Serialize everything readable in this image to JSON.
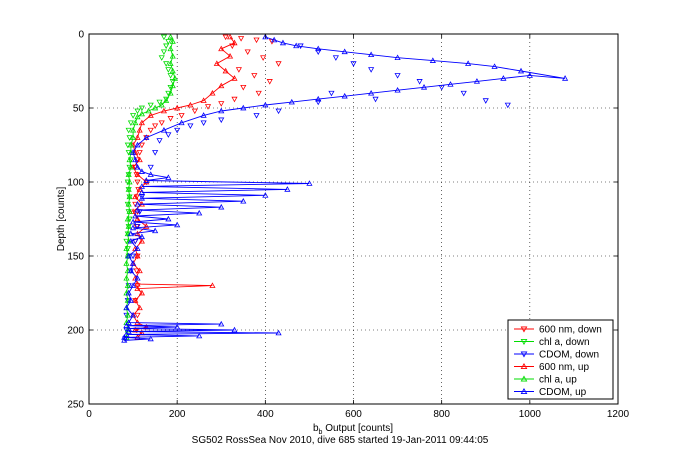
{
  "chart_data": {
    "type": "scatter",
    "xlabel": "b",
    "xlabel_sub": "b",
    "xlabel_rest": " Output [counts]",
    "ylabel": "Depth [counts]",
    "caption": "SG502 RossSea Nov 2010, dive 685 started 19-Jan-2011 09:44:05",
    "xlim": [
      0,
      1200
    ],
    "ylim": [
      0,
      250
    ],
    "y_reversed": true,
    "grid": true,
    "legend_position": "bottom-right",
    "xticks": [
      "0",
      "200",
      "400",
      "600",
      "800",
      "1000",
      "1200"
    ],
    "yticks": [
      "0",
      "50",
      "100",
      "150",
      "200",
      "250"
    ],
    "series": [
      {
        "name": "600 nm, down",
        "color": "#ff0000",
        "marker": "triangle-down",
        "connect": false,
        "points": [
          [
            310,
            2
          ],
          [
            345,
            3
          ],
          [
            380,
            4
          ],
          [
            415,
            5
          ],
          [
            325,
            8
          ],
          [
            360,
            12
          ],
          [
            395,
            16
          ],
          [
            430,
            20
          ],
          [
            340,
            24
          ],
          [
            375,
            28
          ],
          [
            410,
            32
          ],
          [
            350,
            36
          ],
          [
            385,
            40
          ],
          [
            330,
            44
          ],
          [
            300,
            47
          ],
          [
            270,
            49
          ],
          [
            240,
            52
          ],
          [
            210,
            55
          ],
          [
            185,
            57
          ],
          [
            165,
            60
          ],
          [
            150,
            62
          ],
          [
            140,
            65
          ],
          [
            130,
            70
          ],
          [
            120,
            75
          ],
          [
            115,
            80
          ],
          [
            110,
            85
          ],
          [
            105,
            90
          ],
          [
            108,
            95
          ],
          [
            110,
            100
          ],
          [
            112,
            105
          ],
          [
            108,
            110
          ],
          [
            105,
            115
          ],
          [
            110,
            120
          ],
          [
            108,
            130
          ],
          [
            105,
            140
          ],
          [
            110,
            150
          ],
          [
            108,
            160
          ],
          [
            110,
            170
          ],
          [
            105,
            180
          ],
          [
            110,
            190
          ],
          [
            108,
            200
          ]
        ]
      },
      {
        "name": "chl a, down",
        "color": "#00dd00",
        "marker": "triangle-down",
        "connect": false,
        "points": [
          [
            170,
            2
          ],
          [
            180,
            5
          ],
          [
            175,
            8
          ],
          [
            170,
            12
          ],
          [
            165,
            16
          ],
          [
            175,
            20
          ],
          [
            180,
            24
          ],
          [
            185,
            28
          ],
          [
            190,
            32
          ],
          [
            185,
            36
          ],
          [
            180,
            40
          ],
          [
            175,
            44
          ],
          [
            160,
            46
          ],
          [
            140,
            48
          ],
          [
            120,
            50
          ],
          [
            110,
            52
          ],
          [
            100,
            55
          ],
          [
            95,
            60
          ],
          [
            90,
            65
          ],
          [
            92,
            70
          ],
          [
            88,
            75
          ],
          [
            90,
            80
          ],
          [
            95,
            85
          ],
          [
            92,
            90
          ],
          [
            90,
            95
          ],
          [
            88,
            100
          ],
          [
            90,
            105
          ],
          [
            92,
            110
          ],
          [
            88,
            115
          ],
          [
            90,
            120
          ],
          [
            92,
            125
          ],
          [
            90,
            130
          ],
          [
            88,
            135
          ],
          [
            85,
            140
          ],
          [
            88,
            145
          ],
          [
            90,
            150
          ]
        ]
      },
      {
        "name": "CDOM, down",
        "color": "#0000ff",
        "marker": "triangle-down",
        "connect": false,
        "points": [
          [
            480,
            8
          ],
          [
            520,
            12
          ],
          [
            560,
            16
          ],
          [
            600,
            20
          ],
          [
            640,
            24
          ],
          [
            700,
            28
          ],
          [
            750,
            32
          ],
          [
            800,
            36
          ],
          [
            850,
            40
          ],
          [
            900,
            45
          ],
          [
            950,
            48
          ],
          [
            650,
            44
          ],
          [
            550,
            40
          ],
          [
            520,
            46
          ],
          [
            430,
            52
          ],
          [
            380,
            55
          ],
          [
            300,
            58
          ],
          [
            260,
            60
          ],
          [
            230,
            62
          ],
          [
            200,
            65
          ],
          [
            180,
            68
          ],
          [
            160,
            72
          ],
          [
            150,
            80
          ],
          [
            140,
            90
          ],
          [
            130,
            100
          ],
          [
            120,
            110
          ],
          [
            115,
            120
          ],
          [
            110,
            130
          ],
          [
            105,
            140
          ],
          [
            100,
            150
          ],
          [
            95,
            160
          ],
          [
            90,
            170
          ],
          [
            88,
            180
          ],
          [
            85,
            190
          ],
          [
            85,
            200
          ],
          [
            82,
            206
          ]
        ]
      },
      {
        "name": "600 nm, up",
        "color": "#ff0000",
        "marker": "triangle-up",
        "connect": true,
        "points": [
          [
            110,
            205
          ],
          [
            120,
            202
          ],
          [
            105,
            200
          ],
          [
            130,
            198
          ],
          [
            110,
            195
          ],
          [
            100,
            190
          ],
          [
            115,
            185
          ],
          [
            105,
            180
          ],
          [
            120,
            175
          ],
          [
            110,
            172
          ],
          [
            280,
            170
          ],
          [
            110,
            169
          ],
          [
            105,
            165
          ],
          [
            115,
            160
          ],
          [
            100,
            155
          ],
          [
            110,
            150
          ],
          [
            105,
            145
          ],
          [
            120,
            140
          ],
          [
            110,
            135
          ],
          [
            130,
            130
          ],
          [
            110,
            125
          ],
          [
            100,
            120
          ],
          [
            120,
            115
          ],
          [
            105,
            110
          ],
          [
            115,
            105
          ],
          [
            130,
            100
          ],
          [
            110,
            95
          ],
          [
            100,
            90
          ],
          [
            115,
            85
          ],
          [
            105,
            80
          ],
          [
            100,
            75
          ],
          [
            110,
            70
          ],
          [
            115,
            65
          ],
          [
            120,
            60
          ],
          [
            140,
            55
          ],
          [
            170,
            52
          ],
          [
            200,
            50
          ],
          [
            230,
            48
          ],
          [
            260,
            45
          ],
          [
            280,
            40
          ],
          [
            300,
            35
          ],
          [
            330,
            30
          ],
          [
            310,
            25
          ],
          [
            290,
            20
          ],
          [
            320,
            15
          ],
          [
            300,
            10
          ],
          [
            330,
            6
          ],
          [
            320,
            2
          ]
        ]
      },
      {
        "name": "chl a, up",
        "color": "#00dd00",
        "marker": "triangle-up",
        "connect": true,
        "points": [
          [
            85,
            205
          ],
          [
            88,
            200
          ],
          [
            85,
            195
          ],
          [
            88,
            190
          ],
          [
            85,
            185
          ],
          [
            88,
            180
          ],
          [
            85,
            175
          ],
          [
            88,
            170
          ],
          [
            85,
            165
          ],
          [
            88,
            160
          ],
          [
            85,
            155
          ],
          [
            88,
            150
          ],
          [
            85,
            145
          ],
          [
            90,
            140
          ],
          [
            88,
            135
          ],
          [
            90,
            130
          ],
          [
            88,
            125
          ],
          [
            92,
            120
          ],
          [
            90,
            115
          ],
          [
            92,
            110
          ],
          [
            90,
            105
          ],
          [
            92,
            100
          ],
          [
            90,
            95
          ],
          [
            95,
            90
          ],
          [
            92,
            85
          ],
          [
            95,
            80
          ],
          [
            95,
            75
          ],
          [
            100,
            70
          ],
          [
            100,
            65
          ],
          [
            105,
            60
          ],
          [
            110,
            56
          ],
          [
            120,
            54
          ],
          [
            135,
            52
          ],
          [
            150,
            50
          ],
          [
            165,
            48
          ],
          [
            175,
            45
          ],
          [
            185,
            40
          ],
          [
            190,
            35
          ],
          [
            195,
            30
          ],
          [
            190,
            25
          ],
          [
            185,
            20
          ],
          [
            190,
            15
          ],
          [
            185,
            10
          ],
          [
            190,
            5
          ],
          [
            185,
            2
          ]
        ]
      },
      {
        "name": "CDOM, up",
        "color": "#0000ff",
        "marker": "triangle-up",
        "connect": true,
        "points": [
          [
            80,
            207
          ],
          [
            140,
            206
          ],
          [
            80,
            205
          ],
          [
            250,
            204
          ],
          [
            85,
            203
          ],
          [
            430,
            202
          ],
          [
            90,
            201
          ],
          [
            330,
            200
          ],
          [
            90,
            199
          ],
          [
            200,
            198
          ],
          [
            85,
            197
          ],
          [
            300,
            196
          ],
          [
            90,
            195
          ],
          [
            100,
            190
          ],
          [
            85,
            185
          ],
          [
            95,
            180
          ],
          [
            90,
            175
          ],
          [
            100,
            170
          ],
          [
            110,
            165
          ],
          [
            95,
            160
          ],
          [
            100,
            155
          ],
          [
            90,
            150
          ],
          [
            110,
            145
          ],
          [
            95,
            140
          ],
          [
            120,
            137
          ],
          [
            95,
            135
          ],
          [
            150,
            133
          ],
          [
            100,
            131
          ],
          [
            200,
            129
          ],
          [
            100,
            127
          ],
          [
            180,
            125
          ],
          [
            105,
            123
          ],
          [
            250,
            121
          ],
          [
            110,
            119
          ],
          [
            300,
            117
          ],
          [
            110,
            115
          ],
          [
            350,
            113
          ],
          [
            120,
            111
          ],
          [
            400,
            109
          ],
          [
            120,
            107
          ],
          [
            450,
            105
          ],
          [
            120,
            103
          ],
          [
            500,
            101
          ],
          [
            130,
            99
          ],
          [
            180,
            97
          ],
          [
            140,
            95
          ],
          [
            120,
            93
          ],
          [
            110,
            90
          ],
          [
            105,
            85
          ],
          [
            100,
            80
          ],
          [
            110,
            75
          ],
          [
            130,
            70
          ],
          [
            170,
            65
          ],
          [
            210,
            60
          ],
          [
            260,
            55
          ],
          [
            300,
            52
          ],
          [
            350,
            50
          ],
          [
            400,
            48
          ],
          [
            460,
            46
          ],
          [
            520,
            44
          ],
          [
            580,
            42
          ],
          [
            640,
            40
          ],
          [
            700,
            38
          ],
          [
            760,
            36
          ],
          [
            820,
            34
          ],
          [
            880,
            32
          ],
          [
            940,
            30
          ],
          [
            1000,
            28
          ],
          [
            1080,
            30
          ],
          [
            980,
            25
          ],
          [
            920,
            22
          ],
          [
            860,
            20
          ],
          [
            780,
            18
          ],
          [
            700,
            16
          ],
          [
            640,
            14
          ],
          [
            580,
            12
          ],
          [
            520,
            10
          ],
          [
            470,
            8
          ],
          [
            440,
            6
          ],
          [
            420,
            4
          ],
          [
            400,
            2
          ]
        ]
      }
    ]
  }
}
